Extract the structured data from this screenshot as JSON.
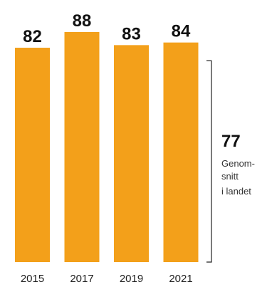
{
  "chart_data": {
    "type": "bar",
    "categories": [
      "2015",
      "2017",
      "2019",
      "2021"
    ],
    "values": [
      82,
      88,
      83,
      84
    ],
    "value_labels": [
      "82",
      "88",
      "83",
      "84"
    ],
    "title": "",
    "xlabel": "",
    "ylabel": "",
    "ylim": [
      0,
      88
    ],
    "grid": false,
    "legend": "none",
    "bar_color": "#F3A01A",
    "reference": {
      "value": 77,
      "value_label": "77",
      "label_lines": [
        "Genom-",
        "snitt",
        "i landet"
      ]
    }
  }
}
